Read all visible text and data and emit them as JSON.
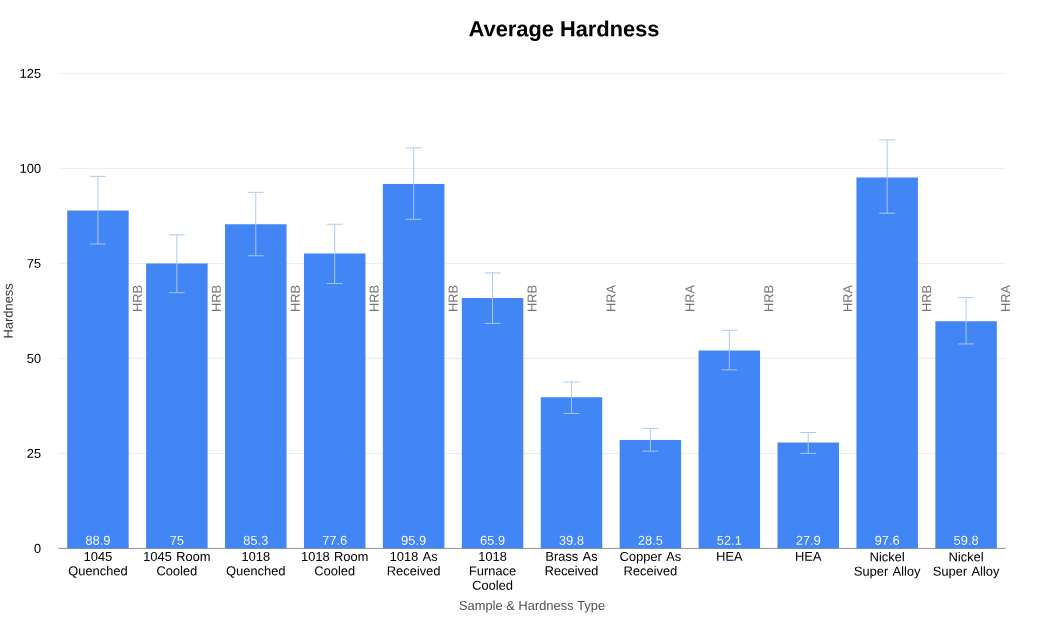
{
  "chart_data": {
    "type": "bar",
    "title": "Average Hardness",
    "xlabel": "Sample & Hardness Type",
    "ylabel": "Hardness",
    "categories": [
      "1045 Quenched",
      "1045 Room Cooled",
      "1018 Quenched",
      "1018 Room Cooled",
      "1018 As Received",
      "1018 Furnace Cooled",
      "Brass As Received",
      "Copper As Received",
      "HEA",
      "HEA",
      "Nickel Super Alloy",
      "Nickel Super Alloy"
    ],
    "values": [
      88.9,
      75,
      85.3,
      77.6,
      95.9,
      65.9,
      39.8,
      28.5,
      52.1,
      27.9,
      97.6,
      59.8
    ],
    "errors": [
      [
        80.1,
        97.9
      ],
      [
        67.3,
        82.5
      ],
      [
        77,
        93.7
      ],
      [
        69.7,
        85.3
      ],
      [
        86.6,
        105.4
      ],
      [
        59.2,
        72.5
      ],
      [
        35.5,
        43.8
      ],
      [
        25.6,
        31.6
      ],
      [
        47,
        57.4
      ],
      [
        25,
        30.5
      ],
      [
        88.2,
        107.5
      ],
      [
        53.8,
        66
      ]
    ],
    "color": "#4285f4",
    "data_labels": true,
    "grid": "y",
    "ylim": [
      0,
      125
    ],
    "yticks": [
      0,
      25,
      50,
      75,
      100,
      125
    ],
    "annotations": [
      "HRB",
      "HRB",
      "HRB",
      "HRB",
      "HRB",
      "HRB",
      "HRA",
      "HRA",
      "HRB",
      "HRA",
      "HRB",
      "HRA"
    ]
  }
}
